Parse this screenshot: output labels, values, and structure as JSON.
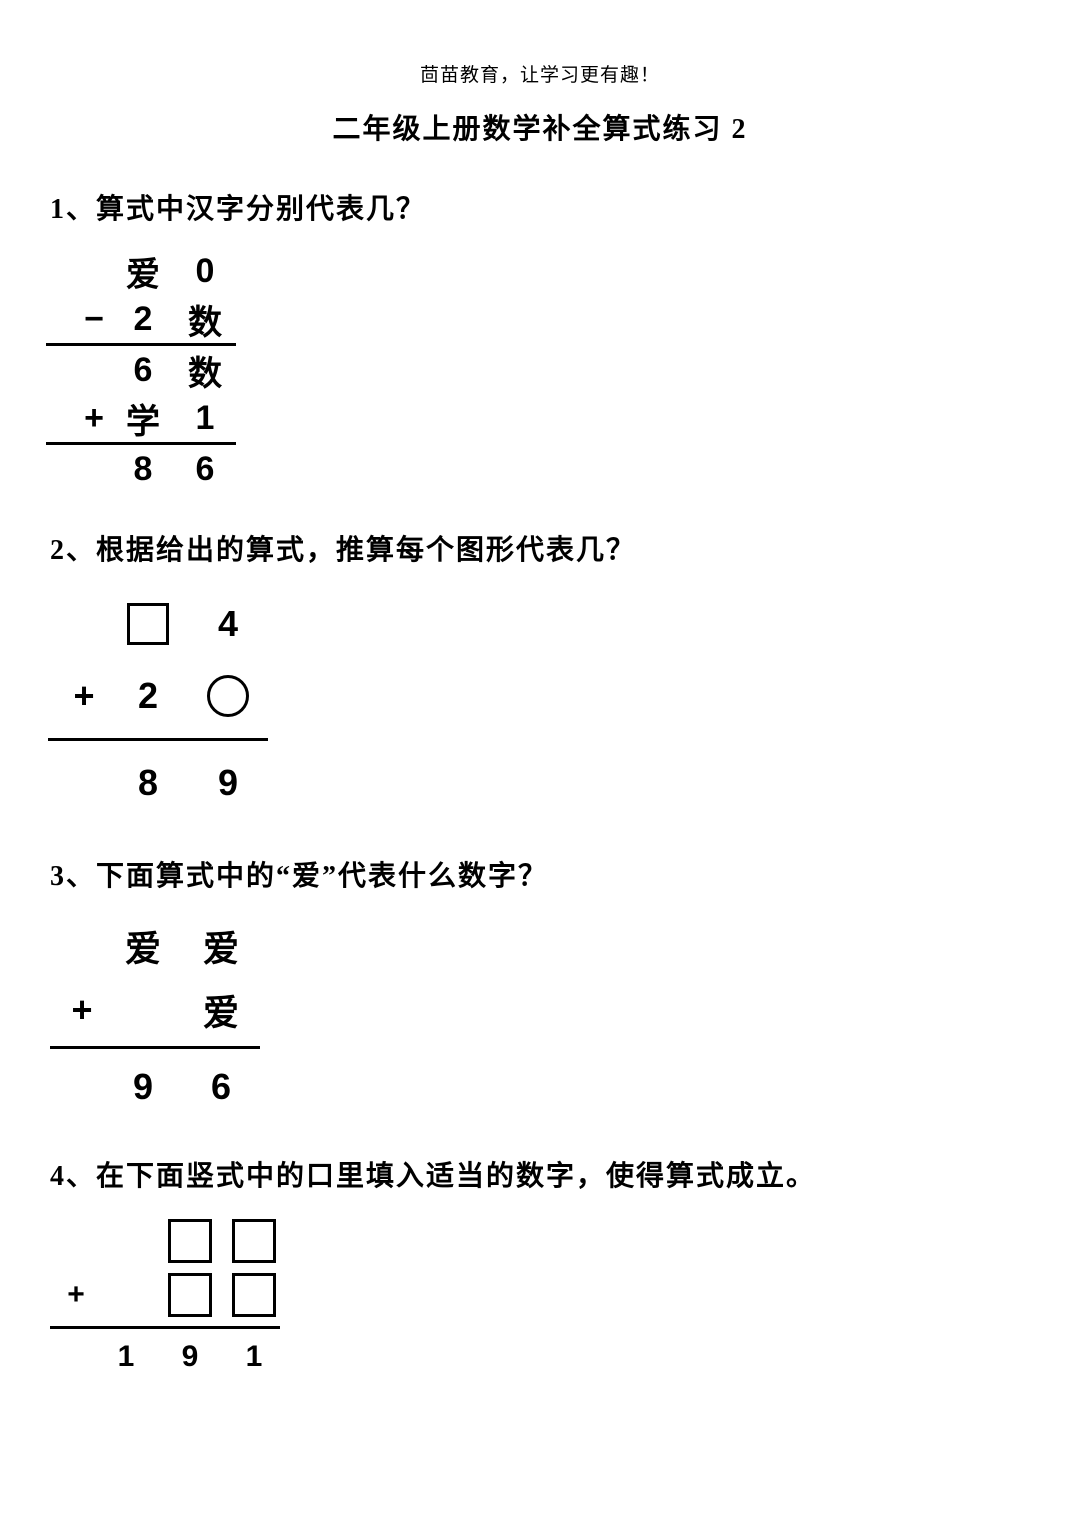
{
  "header": "茴苗教育，让学习更有趣！",
  "title": "二年级上册数学补全算式练习 2",
  "q1": {
    "label": "1、算式中汉字分别代表几？",
    "r1": {
      "op": "",
      "a": "爱",
      "b": "0"
    },
    "r2": {
      "op": "−",
      "a": "2",
      "b": "数"
    },
    "r3": {
      "op": "",
      "a": "6",
      "b": "数"
    },
    "r4": {
      "op": "+",
      "a": "学",
      "b": "1"
    },
    "r5": {
      "op": "",
      "a": "8",
      "b": "6"
    }
  },
  "q2": {
    "label": "2、根据给出的算式，推算每个图形代表几？",
    "r1": {
      "op": "",
      "b": "4"
    },
    "r2": {
      "op": "+",
      "a": "2"
    },
    "r3": {
      "op": "",
      "a": "8",
      "b": "9"
    }
  },
  "q3": {
    "label": "3、下面算式中的“爱”代表什么数字？",
    "r1": {
      "op": "",
      "a": "爱",
      "b": "爱"
    },
    "r2": {
      "op": "+",
      "a": "",
      "b": "爱"
    },
    "r3": {
      "op": "",
      "a": "9",
      "b": "6"
    }
  },
  "q4": {
    "label": "4、在下面竖式中的口里填入适当的数字，使得算式成立。",
    "r3": {
      "op": "",
      "a": "1",
      "b": "9",
      "c": "1"
    }
  },
  "style": {
    "page_bg": "#ffffff",
    "text_color": "#000000",
    "rule_color": "#000000",
    "title_fontsize": 28,
    "question_fontsize": 28,
    "p1_cell_fontsize": 34,
    "p2_cell_fontsize": 36,
    "p3_cell_fontsize": 36,
    "p4_cell_fontsize": 30,
    "border_width": 3.5
  }
}
